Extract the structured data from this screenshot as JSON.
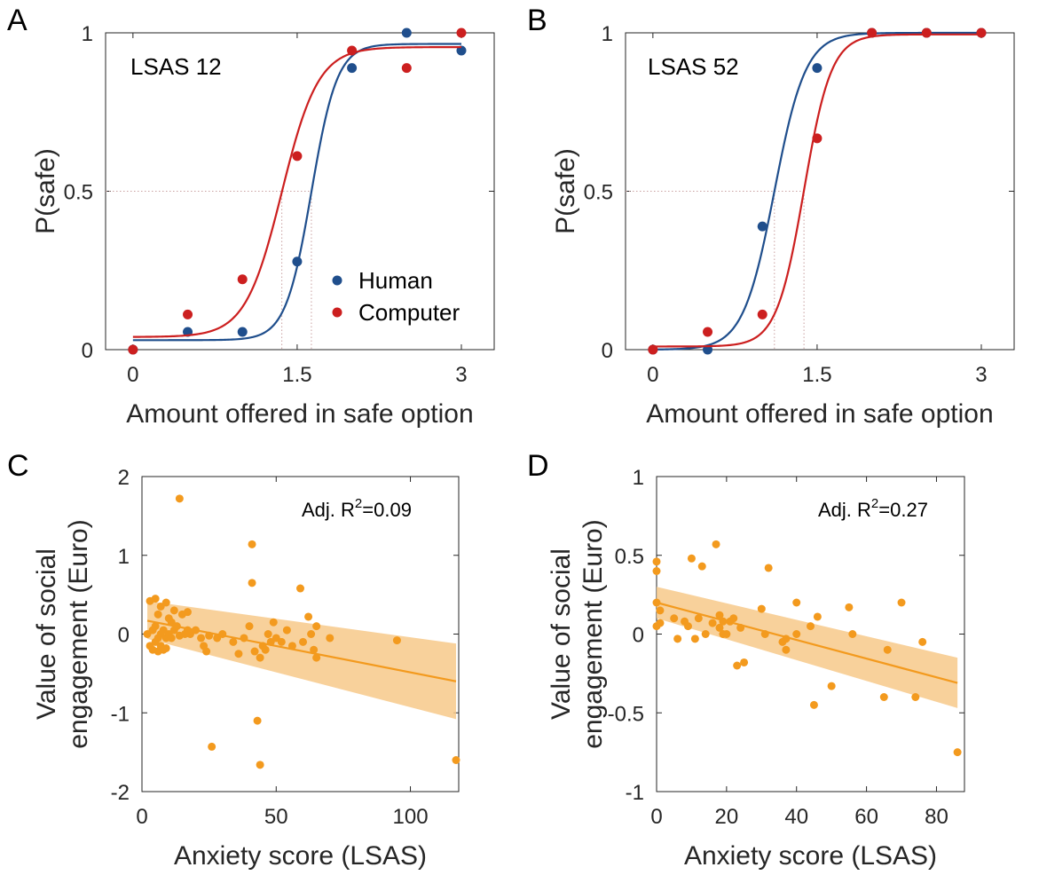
{
  "chart_data": [
    {
      "id": "A",
      "type": "scatter",
      "panel_label": "A",
      "inset_label": "LSAS 12",
      "xlabel": "Amount offered in safe option",
      "ylabel": "P(safe)",
      "xlim": [
        -0.25,
        3.3
      ],
      "ylim": [
        0,
        1
      ],
      "xticks": [
        "0",
        "1.5",
        "3"
      ],
      "xtick_values": [
        0,
        1.5,
        3
      ],
      "yticks": [
        "0",
        "0.5",
        "1"
      ],
      "ytick_values": [
        0,
        0.5,
        1
      ],
      "legend": {
        "position": "bottom-right",
        "entries": [
          "Human",
          "Computer"
        ]
      },
      "thresholds": [
        1.36,
        1.63
      ],
      "series": [
        {
          "name": "Human",
          "color": "#1f4e8c",
          "x": [
            0,
            0.5,
            1.0,
            1.5,
            2.0,
            2.5,
            3.0
          ],
          "y": [
            0,
            0.056,
            0.056,
            0.278,
            0.889,
            1.0,
            0.944
          ],
          "fit": {
            "min": 0.03,
            "max": 0.965,
            "x0": 1.63,
            "slope": 8.5
          }
        },
        {
          "name": "Computer",
          "color": "#cc1f1f",
          "x": [
            0,
            0.5,
            1.0,
            1.5,
            2.0,
            2.5,
            3.0
          ],
          "y": [
            0,
            0.111,
            0.222,
            0.611,
            0.944,
            0.889,
            1.0
          ],
          "fit": {
            "min": 0.04,
            "max": 0.955,
            "x0": 1.36,
            "slope": 6.0
          }
        }
      ]
    },
    {
      "id": "B",
      "type": "scatter",
      "panel_label": "B",
      "inset_label": "LSAS 52",
      "xlabel": "Amount offered in safe option",
      "ylabel": "P(safe)",
      "xlim": [
        -0.25,
        3.3
      ],
      "ylim": [
        0,
        1
      ],
      "xticks": [
        "0",
        "1.5",
        "3"
      ],
      "xtick_values": [
        0,
        1.5,
        3
      ],
      "yticks": [
        "0",
        "0.5",
        "1"
      ],
      "ytick_values": [
        0,
        0.5,
        1
      ],
      "thresholds": [
        1.11,
        1.38
      ],
      "series": [
        {
          "name": "Human",
          "color": "#1f4e8c",
          "x": [
            0,
            0.5,
            1.0,
            1.5,
            2.0,
            2.5,
            3.0
          ],
          "y": [
            0,
            0,
            0.389,
            0.889,
            1.0,
            1.0,
            1.0
          ],
          "fit": {
            "min": 0.0,
            "max": 1.0,
            "x0": 1.11,
            "slope": 7.0
          }
        },
        {
          "name": "Computer",
          "color": "#cc1f1f",
          "x": [
            0,
            0.5,
            1.0,
            1.5,
            2.0,
            2.5,
            3.0
          ],
          "y": [
            0,
            0.056,
            0.111,
            0.667,
            1.0,
            1.0,
            1.0
          ],
          "fit": {
            "min": 0.01,
            "max": 0.995,
            "x0": 1.38,
            "slope": 8.0
          }
        }
      ]
    },
    {
      "id": "C",
      "type": "scatter",
      "panel_label": "C",
      "annotation": "Adj. R",
      "annotation_sup": "2",
      "annotation_value": "=0.09",
      "xlabel": "Anxiety score (LSAS)",
      "ylabel": [
        "Value of social",
        "engagement (Euro)"
      ],
      "xlim": [
        0,
        118
      ],
      "ylim": [
        -2,
        2
      ],
      "xticks": [
        "0",
        "50",
        "100"
      ],
      "xtick_values": [
        0,
        50,
        100
      ],
      "yticks": [
        "-2",
        "-1",
        "0",
        "1",
        "2"
      ],
      "ytick_values": [
        -2,
        -1,
        0,
        1,
        2
      ],
      "color": "#f39a1e",
      "regression": {
        "x": [
          2,
          117
        ],
        "y": [
          0.17,
          -0.6
        ],
        "ci_upper": [
          0.42,
          -0.12
        ],
        "ci_lower": [
          -0.06,
          -1.08
        ]
      },
      "points": [
        [
          2,
          0.0
        ],
        [
          3,
          0.42
        ],
        [
          3,
          -0.15
        ],
        [
          4,
          0.05
        ],
        [
          4,
          -0.2
        ],
        [
          5,
          0.45
        ],
        [
          5,
          0.1
        ],
        [
          5,
          -0.1
        ],
        [
          6,
          0.25
        ],
        [
          6,
          -0.05
        ],
        [
          6,
          -0.22
        ],
        [
          7,
          0.35
        ],
        [
          7,
          0.0
        ],
        [
          7,
          -0.15
        ],
        [
          8,
          0.05
        ],
        [
          8,
          -0.2
        ],
        [
          9,
          0.4
        ],
        [
          9,
          -0.05
        ],
        [
          9,
          -0.18
        ],
        [
          10,
          0.2
        ],
        [
          10,
          0.0
        ],
        [
          11,
          0.15
        ],
        [
          11,
          -0.05
        ],
        [
          12,
          0.3
        ],
        [
          12,
          0.05
        ],
        [
          13,
          0.1
        ],
        [
          14,
          1.72
        ],
        [
          14,
          -0.02
        ],
        [
          15,
          0.25
        ],
        [
          16,
          0.0
        ],
        [
          17,
          0.28
        ],
        [
          17,
          0.05
        ],
        [
          18,
          0.0
        ],
        [
          20,
          0.05
        ],
        [
          22,
          -0.05
        ],
        [
          23,
          -0.15
        ],
        [
          24,
          -0.22
        ],
        [
          25,
          -0.02
        ],
        [
          26,
          -1.43
        ],
        [
          28,
          -0.05
        ],
        [
          30,
          0.0
        ],
        [
          34,
          -0.1
        ],
        [
          36,
          -0.25
        ],
        [
          38,
          -0.05
        ],
        [
          40,
          0.1
        ],
        [
          41,
          1.14
        ],
        [
          41,
          0.65
        ],
        [
          42,
          -0.22
        ],
        [
          43,
          -1.1
        ],
        [
          44,
          -0.3
        ],
        [
          44,
          -1.66
        ],
        [
          45,
          -0.15
        ],
        [
          46,
          -0.2
        ],
        [
          47,
          0.0
        ],
        [
          48,
          -0.1
        ],
        [
          49,
          0.15
        ],
        [
          50,
          -0.05
        ],
        [
          52,
          -0.1
        ],
        [
          54,
          0.05
        ],
        [
          56,
          -0.15
        ],
        [
          59,
          0.58
        ],
        [
          60,
          -0.1
        ],
        [
          62,
          0.22
        ],
        [
          63,
          0.0
        ],
        [
          64,
          -0.2
        ],
        [
          65,
          0.1
        ],
        [
          65,
          -0.3
        ],
        [
          70,
          -0.05
        ],
        [
          95,
          -0.08
        ],
        [
          117,
          -1.6
        ]
      ]
    },
    {
      "id": "D",
      "type": "scatter",
      "panel_label": "D",
      "annotation": "Adj. R",
      "annotation_sup": "2",
      "annotation_value": "=0.27",
      "xlabel": "Anxiety score (LSAS)",
      "ylabel": [
        "Value of social",
        "engagement (Euro)"
      ],
      "xlim": [
        0,
        88
      ],
      "ylim": [
        -1,
        1
      ],
      "xticks": [
        "0",
        "20",
        "40",
        "60",
        "80"
      ],
      "xtick_values": [
        0,
        20,
        40,
        60,
        80
      ],
      "yticks": [
        "-1",
        "-0.5",
        "0",
        "0.5",
        "1"
      ],
      "ytick_values": [
        -1,
        -0.5,
        0,
        0.5,
        1
      ],
      "color": "#f39a1e",
      "regression": {
        "x": [
          0,
          86
        ],
        "y": [
          0.2,
          -0.31
        ],
        "ci_upper": [
          0.3,
          -0.15
        ],
        "ci_lower": [
          0.1,
          -0.47
        ]
      },
      "points": [
        [
          0,
          0.46
        ],
        [
          0,
          0.4
        ],
        [
          0,
          0.2
        ],
        [
          0,
          0.05
        ],
        [
          1,
          0.15
        ],
        [
          1,
          0.07
        ],
        [
          5,
          0.1
        ],
        [
          6,
          -0.03
        ],
        [
          8,
          0.08
        ],
        [
          9,
          0.05
        ],
        [
          10,
          0.48
        ],
        [
          11,
          -0.03
        ],
        [
          12,
          0.1
        ],
        [
          13,
          0.43
        ],
        [
          14,
          0.0
        ],
        [
          16,
          0.07
        ],
        [
          17,
          0.57
        ],
        [
          18,
          0.12
        ],
        [
          18,
          0.04
        ],
        [
          19,
          0.08
        ],
        [
          19,
          0.0
        ],
        [
          20,
          0.0
        ],
        [
          21,
          0.08
        ],
        [
          22,
          0.1
        ],
        [
          23,
          -0.2
        ],
        [
          24,
          0.04
        ],
        [
          25,
          -0.18
        ],
        [
          30,
          0.16
        ],
        [
          31,
          0.0
        ],
        [
          32,
          0.42
        ],
        [
          36,
          -0.05
        ],
        [
          37,
          -0.1
        ],
        [
          37,
          -0.03
        ],
        [
          40,
          0.2
        ],
        [
          40,
          0.0
        ],
        [
          44,
          0.05
        ],
        [
          45,
          -0.45
        ],
        [
          46,
          0.11
        ],
        [
          50,
          -0.33
        ],
        [
          55,
          0.17
        ],
        [
          56,
          0.0
        ],
        [
          65,
          -0.4
        ],
        [
          66,
          -0.1
        ],
        [
          70,
          0.2
        ],
        [
          74,
          -0.4
        ],
        [
          76,
          -0.05
        ],
        [
          86,
          -0.75
        ]
      ]
    }
  ]
}
